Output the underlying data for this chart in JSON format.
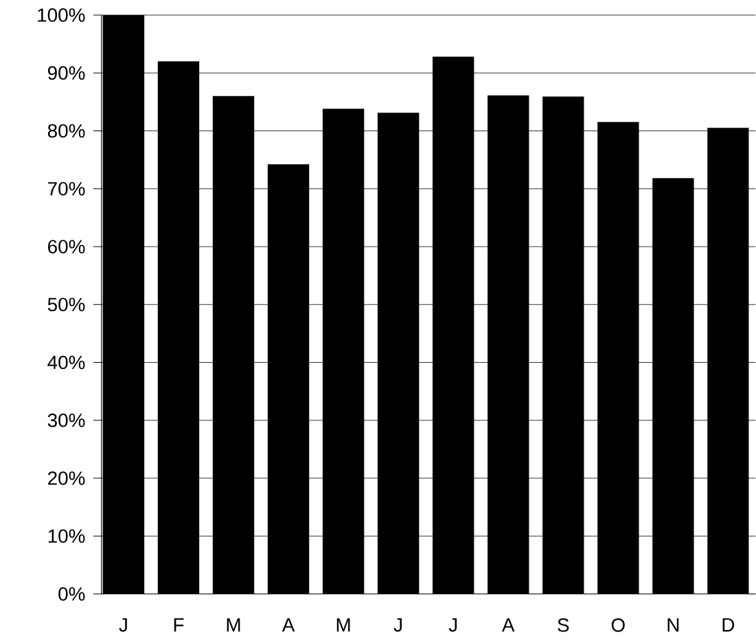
{
  "chart_data": {
    "type": "bar",
    "categories": [
      "J",
      "F",
      "M",
      "A",
      "M",
      "J",
      "J",
      "A",
      "S",
      "O",
      "N",
      "D"
    ],
    "values": [
      100,
      92,
      86,
      74.2,
      83.8,
      83.1,
      92.8,
      86.1,
      85.9,
      81.5,
      71.8,
      80.5
    ],
    "color": "#000000",
    "ylim": [
      0,
      100
    ],
    "yticks": [
      {
        "value": 0,
        "label": "0%"
      },
      {
        "value": 10,
        "label": "10%"
      },
      {
        "value": 20,
        "label": "20%"
      },
      {
        "value": 30,
        "label": "30%"
      },
      {
        "value": 40,
        "label": "40%"
      },
      {
        "value": 50,
        "label": "50%"
      },
      {
        "value": 60,
        "label": "60%"
      },
      {
        "value": 70,
        "label": "70%"
      },
      {
        "value": 80,
        "label": "80%"
      },
      {
        "value": 90,
        "label": "90%"
      },
      {
        "value": 100,
        "label": "100%"
      }
    ],
    "grid": "y"
  }
}
